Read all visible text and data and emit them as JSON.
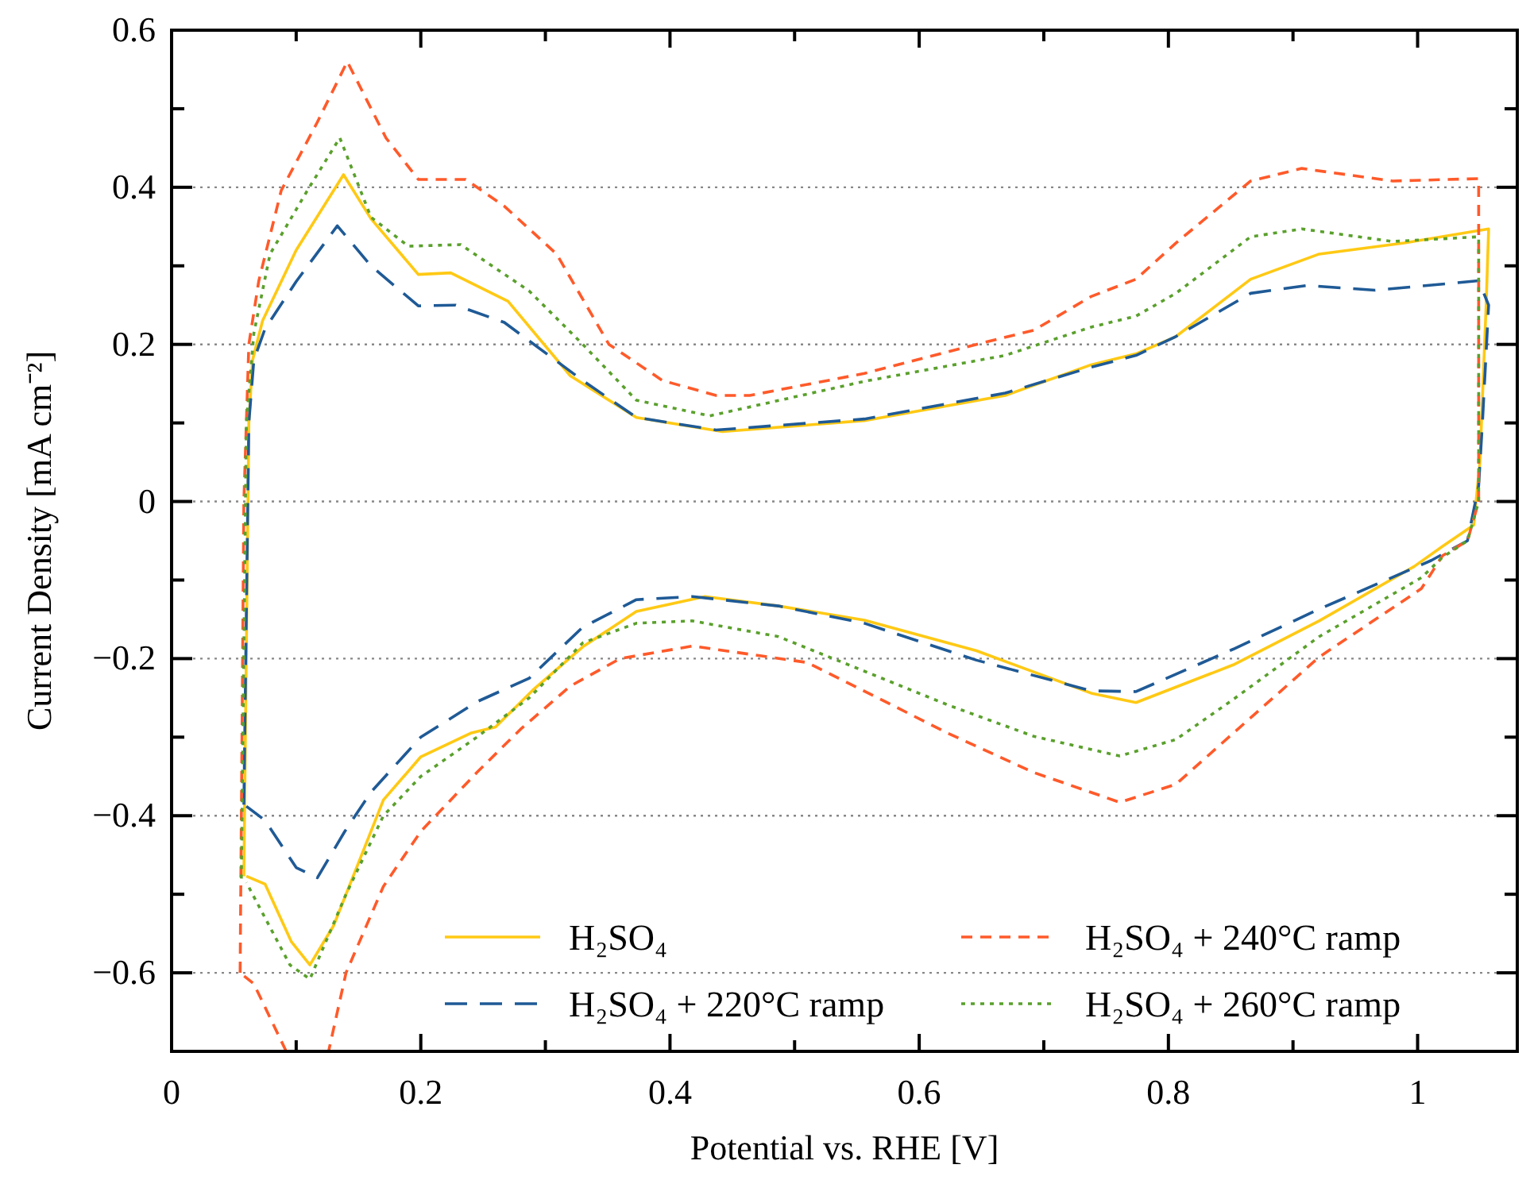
{
  "chart_data": {
    "type": "line",
    "xlabel": "Potential vs. RHE [V]",
    "ylabel": "Current Density [mA cm⁻²]",
    "xlim": [
      0,
      1.08
    ],
    "ylim": [
      -0.7,
      0.6
    ],
    "xticks": [
      0,
      {
        "value": 0.1,
        "label": null
      },
      0.2,
      {
        "value": 0.3,
        "label": null
      },
      0.4,
      {
        "value": 0.5,
        "label": null
      },
      0.6,
      {
        "value": 0.7,
        "label": null
      },
      0.8,
      {
        "value": 0.9,
        "label": null
      },
      1
    ],
    "yticks": [
      {
        "value": -0.7,
        "label": null
      },
      {
        "value": -0.6,
        "label": "−0.6"
      },
      {
        "value": -0.5,
        "label": null
      },
      {
        "value": -0.4,
        "label": "−0.4"
      },
      {
        "value": -0.3,
        "label": null
      },
      {
        "value": -0.2,
        "label": "−0.2"
      },
      {
        "value": -0.1,
        "label": null
      },
      0,
      {
        "value": 0.1,
        "label": null
      },
      0.2,
      {
        "value": 0.3,
        "label": null
      },
      0.4,
      {
        "value": 0.5,
        "label": null
      },
      0.6
    ],
    "grid": "y",
    "legend": "bottom right",
    "marker": "none",
    "series": [
      {
        "name": "H₂SO₄",
        "color": "#ffc914",
        "line_style": "solid",
        "x": [
          0.058,
          0.062,
          0.065,
          0.073,
          0.1,
          0.138,
          0.16,
          0.198,
          0.224,
          0.27,
          0.32,
          0.373,
          0.442,
          0.556,
          0.669,
          0.738,
          0.774,
          0.806,
          0.866,
          0.921,
          0.989,
          1.057,
          1.055,
          1.05,
          1.045,
          1.02,
          0.997,
          0.921,
          0.852,
          0.774,
          0.738,
          0.646,
          0.556,
          0.487,
          0.428,
          0.373,
          0.33,
          0.29,
          0.26,
          0.24,
          0.2,
          0.17,
          0.15,
          0.13,
          0.111,
          0.096,
          0.075,
          0.06
        ],
        "values": [
          -0.477,
          0.1,
          0.18,
          0.23,
          0.32,
          0.416,
          0.36,
          0.289,
          0.291,
          0.255,
          0.16,
          0.107,
          0.089,
          0.103,
          0.135,
          0.174,
          0.188,
          0.21,
          0.283,
          0.315,
          0.329,
          0.347,
          0.25,
          0.05,
          -0.03,
          -0.057,
          -0.083,
          -0.152,
          -0.208,
          -0.256,
          -0.244,
          -0.19,
          -0.151,
          -0.133,
          -0.121,
          -0.14,
          -0.185,
          -0.24,
          -0.287,
          -0.295,
          -0.325,
          -0.38,
          -0.46,
          -0.54,
          -0.59,
          -0.56,
          -0.487,
          -0.477
        ]
      },
      {
        "name": "H₂SO₄ + 220°C ramp",
        "color": "#1f5a96",
        "line_style": "dashed",
        "x": [
          0.058,
          0.062,
          0.066,
          0.075,
          0.1,
          0.133,
          0.16,
          0.198,
          0.228,
          0.267,
          0.33,
          0.373,
          0.437,
          0.556,
          0.669,
          0.738,
          0.774,
          0.806,
          0.866,
          0.911,
          0.966,
          1.049,
          1.057,
          1.052,
          1.049,
          1.04,
          1.011,
          0.921,
          0.852,
          0.774,
          0.738,
          0.646,
          0.556,
          0.487,
          0.418,
          0.373,
          0.33,
          0.287,
          0.245,
          0.2,
          0.16,
          0.139,
          0.117,
          0.1,
          0.075,
          0.06
        ],
        "values": [
          -0.386,
          0.1,
          0.18,
          0.22,
          0.28,
          0.351,
          0.3,
          0.249,
          0.25,
          0.228,
          0.154,
          0.107,
          0.091,
          0.105,
          0.138,
          0.171,
          0.186,
          0.21,
          0.265,
          0.275,
          0.269,
          0.281,
          0.25,
          0.1,
          0.02,
          -0.05,
          -0.075,
          -0.137,
          -0.188,
          -0.242,
          -0.241,
          -0.202,
          -0.155,
          -0.133,
          -0.121,
          -0.125,
          -0.16,
          -0.225,
          -0.255,
          -0.3,
          -0.37,
          -0.42,
          -0.479,
          -0.466,
          -0.406,
          -0.388
        ]
      },
      {
        "name": "H₂SO₄ + 240°C ramp",
        "color": "#ff5a2a",
        "line_style": "dashed",
        "x": [
          0.055,
          0.058,
          0.062,
          0.07,
          0.088,
          0.117,
          0.141,
          0.172,
          0.198,
          0.236,
          0.267,
          0.309,
          0.351,
          0.394,
          0.437,
          0.464,
          0.556,
          0.646,
          0.692,
          0.738,
          0.774,
          0.806,
          0.866,
          0.907,
          0.98,
          1.049,
          1.049,
          1.04,
          1.02,
          1.003,
          0.921,
          0.852,
          0.806,
          0.761,
          0.692,
          0.623,
          0.578,
          0.51,
          0.418,
          0.36,
          0.32,
          0.28,
          0.245,
          0.2,
          0.17,
          0.14,
          0.126,
          0.11,
          0.092,
          0.066,
          0.055
        ],
        "values": [
          -0.6,
          0.0,
          0.2,
          0.281,
          0.396,
          0.483,
          0.56,
          0.463,
          0.41,
          0.41,
          0.376,
          0.315,
          0.2,
          0.154,
          0.135,
          0.135,
          0.163,
          0.2,
          0.218,
          0.261,
          0.283,
          0.329,
          0.408,
          0.424,
          0.408,
          0.411,
          0.0,
          -0.05,
          -0.069,
          -0.111,
          -0.198,
          -0.295,
          -0.36,
          -0.383,
          -0.345,
          -0.295,
          -0.259,
          -0.205,
          -0.184,
          -0.2,
          -0.235,
          -0.29,
          -0.345,
          -0.42,
          -0.49,
          -0.6,
          -0.7,
          null,
          -0.7,
          -0.614,
          -0.6
        ]
      },
      {
        "name": "H₂SO₄ + 260°C ramp",
        "color": "#5aa02c",
        "line_style": "dotted",
        "x": [
          0.056,
          0.06,
          0.066,
          0.079,
          0.109,
          0.135,
          0.16,
          0.19,
          0.232,
          0.287,
          0.33,
          0.373,
          0.432,
          0.556,
          0.669,
          0.738,
          0.774,
          0.806,
          0.866,
          0.907,
          0.98,
          1.049,
          1.049,
          1.04,
          1.02,
          1.003,
          0.921,
          0.852,
          0.806,
          0.761,
          0.692,
          0.623,
          0.556,
          0.487,
          0.418,
          0.373,
          0.33,
          0.287,
          0.245,
          0.2,
          0.17,
          0.14,
          0.111,
          0.095,
          0.075,
          0.06
        ],
        "values": [
          -0.48,
          0.1,
          0.214,
          0.315,
          0.396,
          0.463,
          0.362,
          0.325,
          0.327,
          0.268,
          0.2,
          0.129,
          0.109,
          0.153,
          0.186,
          0.222,
          0.236,
          0.265,
          0.337,
          0.347,
          0.331,
          0.337,
          0.0,
          -0.05,
          -0.071,
          -0.097,
          -0.172,
          -0.252,
          -0.303,
          -0.324,
          -0.299,
          -0.259,
          -0.216,
          -0.172,
          -0.152,
          -0.155,
          -0.18,
          -0.25,
          -0.3,
          -0.35,
          -0.4,
          -0.5,
          -0.608,
          -0.59,
          -0.53,
          -0.485
        ]
      }
    ]
  }
}
